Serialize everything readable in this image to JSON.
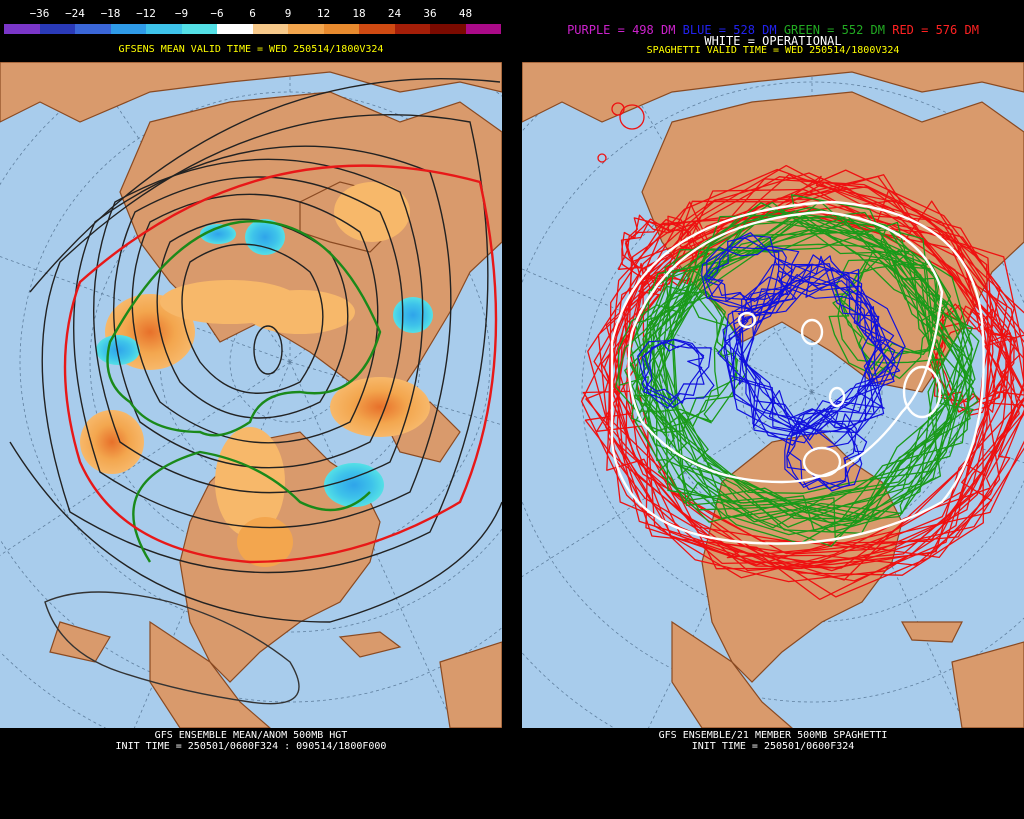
{
  "left_panel": {
    "colorbar": {
      "ticks": [
        "−36",
        "−24",
        "−18",
        "−12",
        "−9",
        "−6",
        "6",
        "9",
        "12",
        "18",
        "24",
        "36",
        "48"
      ],
      "colors": [
        "#7a36c8",
        "#2a3ab8",
        "#3a66d8",
        "#2f9be8",
        "#3ec3ea",
        "#54e0e6",
        "#ffffff",
        "#f7c98a",
        "#f3a64e",
        "#e88a2e",
        "#cf4a12",
        "#a41e08",
        "#7a0a00",
        "#aa0a88"
      ]
    },
    "title": "GFSENS MEAN VALID TIME = WED 250514/1800V324",
    "footer_line1": "GFS ENSEMBLE MEAN/ANOM 500MB HGT",
    "footer_line2": "INIT TIME = 250501/0600F324 : 090514/1800F000"
  },
  "right_panel": {
    "legend": {
      "purple": "PURPLE = 498 DM",
      "blue": "BLUE = 528 DM",
      "green": "GREEN = 552 DM",
      "red": "RED = 576 DM",
      "white": "WHITE = OPERATIONAL"
    },
    "title": "SPAGHETTI VALID TIME = WED 250514/1800V324",
    "footer_line1": "GFS ENSEMBLE/21 MEMBER 500MB SPAGHETTI",
    "footer_line2": "INIT TIME = 250501/0600F324"
  },
  "colors": {
    "ocean": "#a8ccec",
    "land": "#d99a6c",
    "border": "#8a4a22",
    "title_yellow": "#ffff00",
    "purple": "#cc22cc",
    "blue": "#2222ee",
    "green": "#22aa22",
    "red": "#ff2222",
    "white": "#ffffff"
  }
}
